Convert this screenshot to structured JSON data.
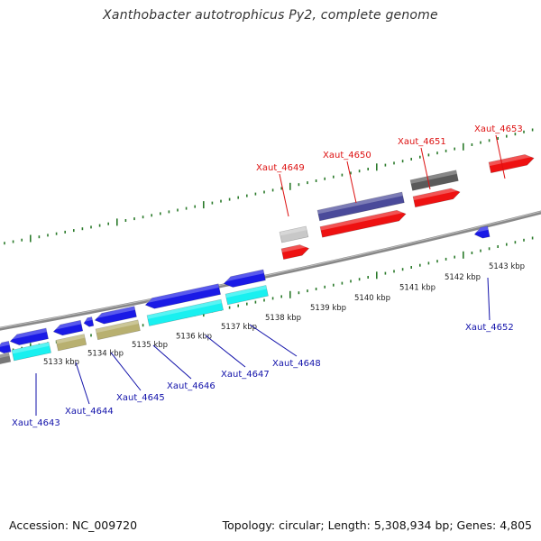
{
  "header": {
    "title": "Xanthobacter autotrophicus Py2, complete genome"
  },
  "footer": {
    "accession": "Accession: NC_009720",
    "summary": "Topology: circular; Length: 5,308,934 bp; Genes: 4,805"
  },
  "colors": {
    "backbone": "#888888",
    "tick": "#2a7a2a",
    "forward_gene_label": "#dd1111",
    "reverse_gene_label": "#1111aa",
    "blue": "#1a1ae6",
    "cyan": "#19f0f0",
    "khaki": "#b8b070",
    "red": "#ee1111",
    "dark_slate": "#4a4a9a",
    "dark_gray": "#5a5a5a",
    "light_gray": "#c8c8c8",
    "small_gray": "#777777"
  },
  "scale_labels": [
    "5133 kbp",
    "5134 kbp",
    "5135 kbp",
    "5136 kbp",
    "5137 kbp",
    "5138 kbp",
    "5139 kbp",
    "5140 kbp",
    "5141 kbp",
    "5142 kbp",
    "5143 kbp"
  ],
  "gene_labels": {
    "top": [
      "Xaut_4649",
      "Xaut_4650",
      "Xaut_4651",
      "Xaut_4653"
    ],
    "bottom": [
      "Xaut_4643",
      "Xaut_4644",
      "Xaut_4645",
      "Xaut_4646",
      "Xaut_4647",
      "Xaut_4648",
      "Xaut_4652"
    ]
  }
}
